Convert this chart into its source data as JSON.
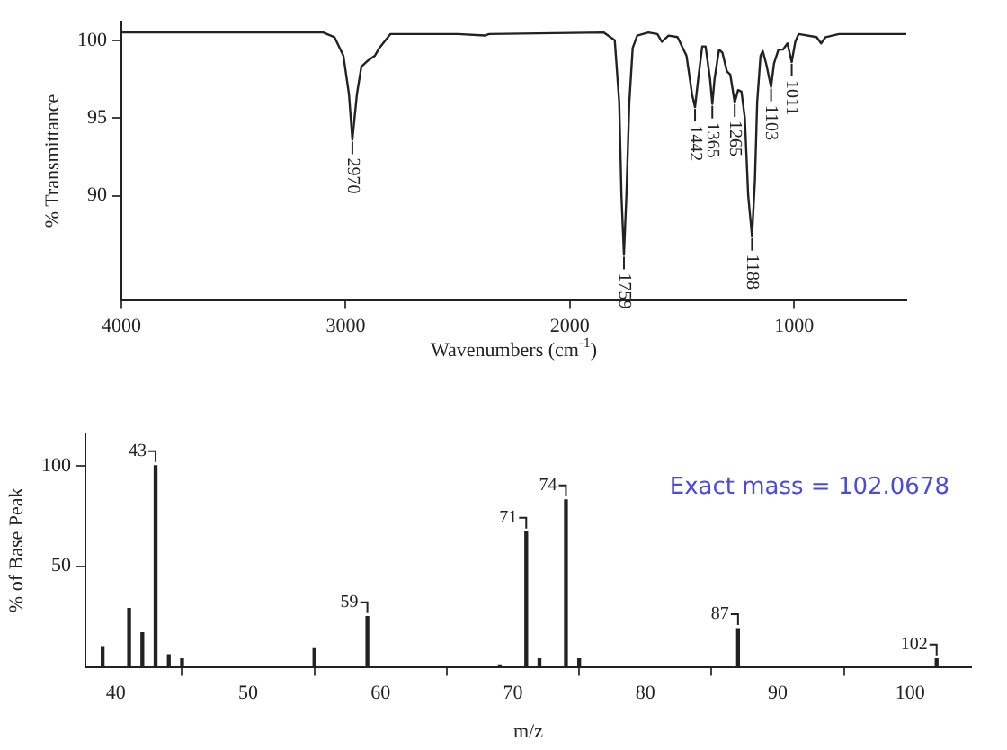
{
  "chart_data": [
    {
      "type": "line",
      "xlabel": "Wavenumbers (cm$^{-1}$)",
      "ylabel": "% Transmittance",
      "xlim": [
        4000,
        500
      ],
      "xticks": [
        4000,
        3000,
        2000,
        1000
      ],
      "ylim": [
        83.3,
        101.2
      ],
      "yticks": [
        90,
        95,
        100
      ],
      "grid": false,
      "legend": false,
      "marker": "none",
      "line_style": "solid",
      "series": [
        {
          "color": "#222222",
          "x": [
            4000,
            3500,
            3100,
            3050,
            3010,
            2985,
            2970,
            2950,
            2930,
            2900,
            2870,
            2850,
            2800,
            2500,
            2380,
            2360,
            1850,
            1800,
            1780,
            1770,
            1759,
            1748,
            1735,
            1720,
            1700,
            1650,
            1610,
            1590,
            1560,
            1520,
            1480,
            1455,
            1442,
            1428,
            1410,
            1395,
            1375,
            1365,
            1355,
            1335,
            1320,
            1300,
            1285,
            1265,
            1250,
            1235,
            1220,
            1205,
            1188,
            1175,
            1165,
            1150,
            1140,
            1125,
            1103,
            1090,
            1070,
            1050,
            1030,
            1011,
            995,
            980,
            900,
            880,
            860,
            800,
            600,
            500
          ],
          "values": [
            100.5,
            100.5,
            100.5,
            100.2,
            99,
            96.5,
            93.6,
            96.5,
            98.3,
            98.7,
            99,
            99.5,
            100.4,
            100.4,
            100.3,
            100.4,
            100.5,
            100,
            96,
            90,
            86.2,
            90,
            96,
            99.5,
            100.3,
            100.5,
            100.4,
            99.9,
            100.3,
            100.2,
            99,
            96.5,
            95.7,
            97.5,
            99.6,
            99.6,
            97.5,
            95.9,
            97.5,
            99.4,
            99.2,
            98,
            97.8,
            96,
            96.8,
            96.7,
            95,
            90,
            87.4,
            91,
            96,
            99,
            99.3,
            98.5,
            97,
            98.5,
            99.4,
            99.4,
            99.8,
            98.6,
            99.9,
            100.4,
            100.2,
            99.8,
            100.2,
            100.4,
            100.4,
            100.4
          ]
        }
      ],
      "annotations": [
        {
          "text": "2970",
          "x": 2970,
          "y": 93.6
        },
        {
          "text": "1759",
          "x": 1759,
          "y": 86.2
        },
        {
          "text": "1442",
          "x": 1442,
          "y": 95.7
        },
        {
          "text": "1365",
          "x": 1365,
          "y": 95.9
        },
        {
          "text": "1265",
          "x": 1265,
          "y": 96
        },
        {
          "text": "1188",
          "x": 1188,
          "y": 87.4
        },
        {
          "text": "1103",
          "x": 1103,
          "y": 97
        },
        {
          "text": "1011",
          "x": 1011,
          "y": 98.6
        }
      ]
    },
    {
      "type": "bar",
      "xlabel": "m/z",
      "ylabel": "% of Base Peak",
      "xlim": [
        37.7,
        104.6
      ],
      "xticks": [
        40,
        50,
        60,
        70,
        80,
        90,
        100
      ],
      "ylim": [
        0,
        116
      ],
      "yticks": [
        50,
        100
      ],
      "grid": false,
      "legend": false,
      "series": [
        {
          "color": "#222222",
          "x": [
            39,
            41,
            42,
            43,
            44,
            45,
            55,
            59,
            69,
            71,
            72,
            74,
            75,
            87,
            102
          ],
          "values": [
            10,
            29,
            17,
            100,
            6,
            4,
            9,
            25,
            1,
            67,
            4,
            83,
            4,
            19,
            4
          ]
        }
      ],
      "annotations": [
        {
          "text": "43",
          "x": 43,
          "y": 100
        },
        {
          "text": "59",
          "x": 59,
          "y": 25
        },
        {
          "text": "71",
          "x": 71,
          "y": 67
        },
        {
          "text": "74",
          "x": 74,
          "y": 83
        },
        {
          "text": "87",
          "x": 87,
          "y": 19
        },
        {
          "text": "102",
          "x": 102,
          "y": 4
        },
        "Exact mass = 102.0678"
      ]
    }
  ]
}
